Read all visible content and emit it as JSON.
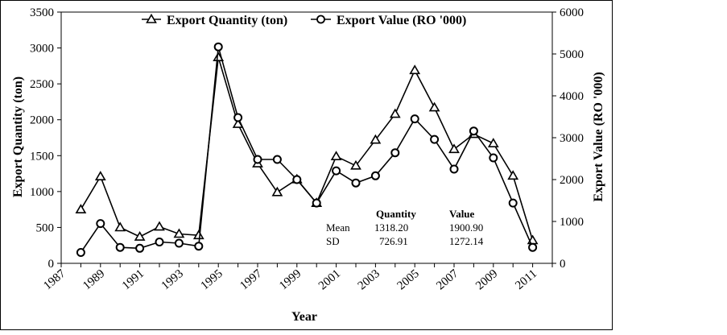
{
  "chart_data": {
    "type": "line",
    "x": [
      1988,
      1989,
      1990,
      1991,
      1992,
      1993,
      1994,
      1995,
      1996,
      1997,
      1998,
      1999,
      2000,
      2001,
      2002,
      2003,
      2004,
      2005,
      2006,
      2007,
      2008,
      2009,
      2010,
      2011
    ],
    "x_ticks": [
      "1987",
      "1989",
      "1991",
      "1993",
      "1995",
      "1997",
      "1999",
      "2001",
      "2003",
      "2005",
      "2007",
      "2009",
      "2011"
    ],
    "xlim": [
      1987,
      2012
    ],
    "xlabel": "Year",
    "y_left": {
      "label": "Export Quantity (ton)",
      "lim": [
        0,
        3500
      ],
      "ticks": [
        "0",
        "500",
        "1000",
        "1500",
        "2000",
        "2500",
        "3000",
        "3500"
      ]
    },
    "y_right": {
      "label": "Export Value (RO '000)",
      "lim": [
        0,
        6000
      ],
      "ticks": [
        "0",
        "1000",
        "2000",
        "3000",
        "4000",
        "5000",
        "6000"
      ]
    },
    "series": [
      {
        "name": "Export Quantity (ton)",
        "axis": "left",
        "marker": "triangle",
        "values": [
          750,
          1210,
          500,
          370,
          510,
          410,
          390,
          2870,
          1940,
          1390,
          990,
          1170,
          840,
          1490,
          1360,
          1720,
          2080,
          2690,
          2170,
          1590,
          1800,
          1670,
          1220,
          320
        ]
      },
      {
        "name": "Export Value (RO '000)",
        "axis": "right",
        "marker": "circle",
        "values": [
          260,
          950,
          380,
          360,
          510,
          480,
          410,
          5170,
          3480,
          2480,
          2480,
          2000,
          1440,
          2210,
          1920,
          2090,
          2640,
          3450,
          2960,
          2250,
          3160,
          2520,
          1440,
          380
        ]
      }
    ],
    "stats": {
      "header_quantity": "Quantity",
      "header_value": "Value",
      "rows": [
        {
          "label": "Mean",
          "quantity": "1318.20",
          "value": "1900.90"
        },
        {
          "label": "SD",
          "quantity": "726.91",
          "value": "1272.14"
        }
      ]
    }
  }
}
